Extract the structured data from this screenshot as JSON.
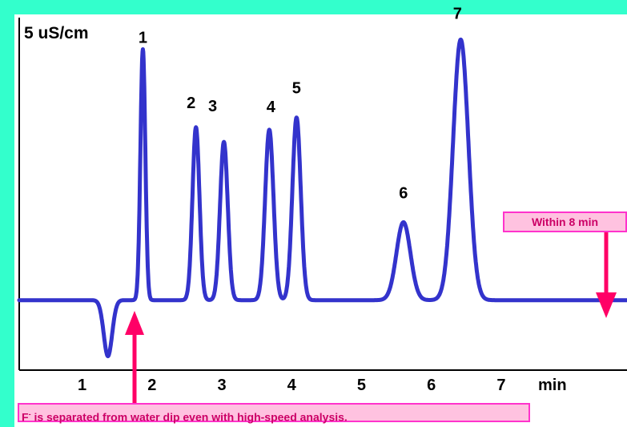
{
  "chart_data": {
    "type": "line",
    "title": "5 uS/cm",
    "xlabel": "min",
    "xlim": [
      0.1,
      8.8
    ],
    "ylim": [
      -1.65,
      5.8
    ],
    "x_ticks": [
      1,
      2,
      3,
      4,
      5,
      6,
      7
    ],
    "x_tick_labels": [
      "1",
      "2",
      "3",
      "4",
      "5",
      "6",
      "7"
    ],
    "baseline": 0,
    "peaks": [
      {
        "label": "1",
        "time": 1.87,
        "height": 5.15,
        "width": 0.035
      },
      {
        "label": "2",
        "time": 2.63,
        "height": 3.55,
        "width": 0.05
      },
      {
        "label": "3",
        "time": 3.03,
        "height": 3.25,
        "width": 0.055
      },
      {
        "label": "4",
        "time": 3.68,
        "height": 3.5,
        "width": 0.06
      },
      {
        "label": "5",
        "time": 4.07,
        "height": 3.75,
        "width": 0.06
      },
      {
        "label": "6",
        "time": 5.6,
        "height": 1.6,
        "width": 0.1
      },
      {
        "label": "7",
        "time": 6.42,
        "height": 5.35,
        "width": 0.11
      }
    ],
    "dip": {
      "label": "F-",
      "time": 1.37,
      "depth": -1.15,
      "width": 0.06
    },
    "series_color": "#3333cc"
  },
  "annotations": {
    "within": "Within 8 min",
    "note_prefix": "F",
    "note_sup": "-",
    "note_rest": " is separated from water dip even with high-speed analysis."
  },
  "colors": {
    "background": "#33ffcc",
    "plot": "#ffffff",
    "box_fill": "#ffc2e0",
    "box_border": "#ff33cc",
    "arrow": "#ff0066"
  }
}
